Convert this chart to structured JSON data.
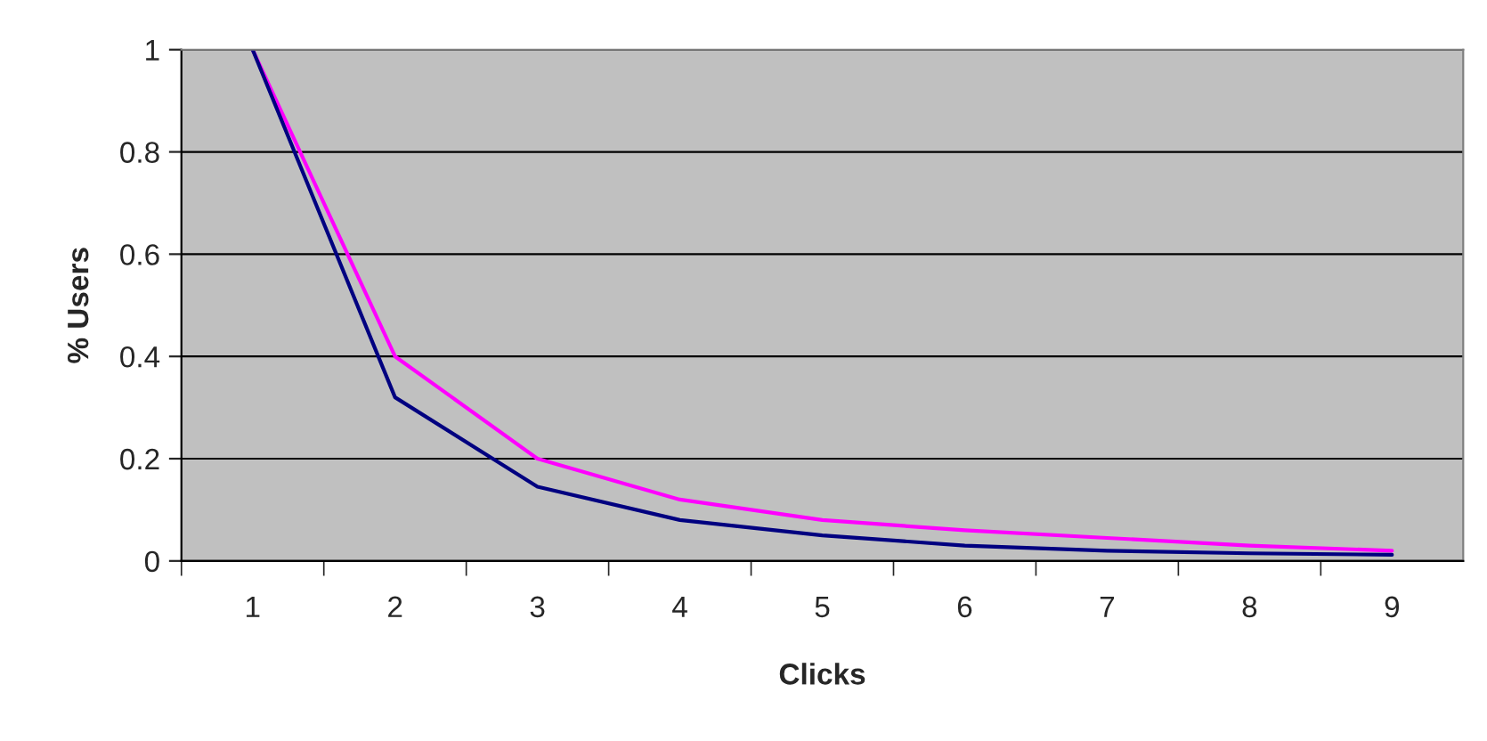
{
  "chart_data": {
    "type": "line",
    "xlabel": "Clicks",
    "ylabel": "% Users",
    "categories": [
      "1",
      "2",
      "3",
      "4",
      "5",
      "6",
      "7",
      "8",
      "9"
    ],
    "series": [
      {
        "color": "#ff00ff",
        "values": [
          1,
          0.4,
          0.2,
          0.12,
          0.08,
          0.06,
          0.045,
          0.03,
          0.02
        ]
      },
      {
        "color": "#000080",
        "values": [
          1,
          0.32,
          0.145,
          0.08,
          0.05,
          0.03,
          0.02,
          0.015,
          0.012
        ]
      }
    ],
    "ylim": [
      0,
      1
    ],
    "yticks": [
      0,
      {
        "value": 0.2,
        "label": "0.2"
      },
      {
        "value": 0.4,
        "label": "0.4"
      },
      {
        "value": 0.6,
        "label": "0.6"
      },
      {
        "value": 0.8,
        "label": "0.8"
      },
      1
    ],
    "grid": "y",
    "legend": false,
    "marker": "none",
    "line_style": "solid"
  }
}
